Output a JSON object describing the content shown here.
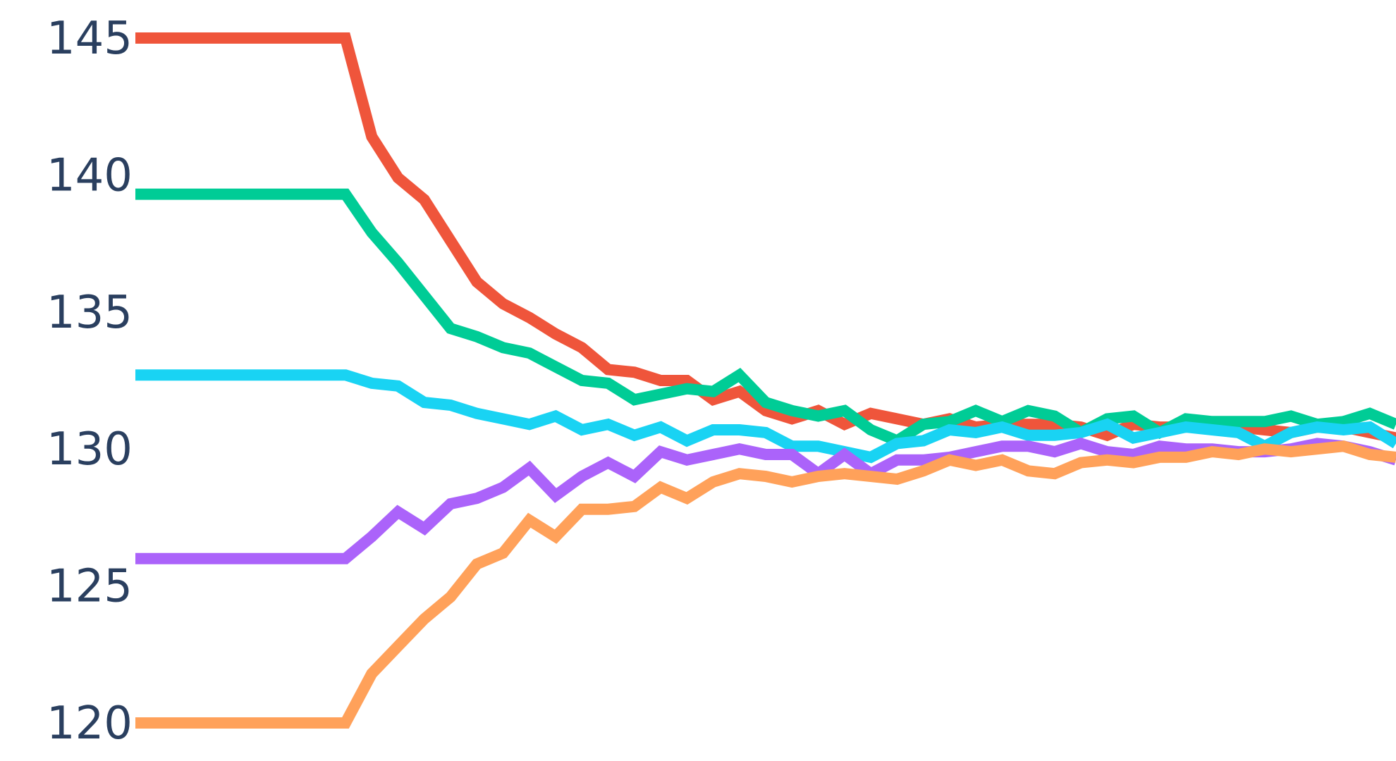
{
  "chart_data": {
    "type": "line",
    "title": "",
    "xlabel": "",
    "ylabel": "",
    "ylim": [
      120,
      145
    ],
    "xlim": [
      0,
      48
    ],
    "grid": false,
    "legend": "none",
    "y_ticks": [
      "120",
      "125",
      "130",
      "135",
      "140",
      "145"
    ],
    "x": [
      0,
      1,
      2,
      3,
      4,
      5,
      6,
      7,
      8,
      9,
      10,
      11,
      12,
      13,
      14,
      15,
      16,
      17,
      18,
      19,
      20,
      21,
      22,
      23,
      24,
      25,
      26,
      27,
      28,
      29,
      30,
      31,
      32,
      33,
      34,
      35,
      36,
      37,
      38,
      39,
      40,
      41,
      42,
      43,
      44,
      45,
      46,
      47,
      48
    ],
    "series": [
      {
        "color": "#ef553b",
        "values": [
          145.0,
          145.0,
          145.0,
          145.0,
          145.0,
          145.0,
          145.0,
          145.0,
          145.0,
          141.4,
          139.9,
          139.1,
          137.6,
          136.1,
          135.3,
          134.8,
          134.2,
          133.7,
          132.9,
          132.8,
          132.5,
          132.5,
          131.8,
          132.1,
          131.4,
          131.1,
          131.4,
          130.9,
          131.3,
          131.1,
          130.9,
          131.1,
          130.8,
          130.9,
          130.9,
          130.9,
          130.8,
          130.5,
          130.9,
          130.8,
          130.8,
          130.9,
          130.8,
          130.7,
          130.6,
          130.8,
          130.8,
          130.6,
          130.4
        ]
      },
      {
        "color": "#00cc96",
        "values": [
          139.3,
          139.3,
          139.3,
          139.3,
          139.3,
          139.3,
          139.3,
          139.3,
          139.3,
          137.9,
          136.8,
          135.6,
          134.4,
          134.1,
          133.7,
          133.5,
          133.0,
          132.5,
          132.4,
          131.8,
          132.0,
          132.2,
          132.1,
          132.7,
          131.7,
          131.4,
          131.2,
          131.4,
          130.7,
          130.3,
          130.9,
          131.0,
          131.4,
          131.0,
          131.4,
          131.2,
          130.6,
          131.1,
          131.2,
          130.6,
          131.1,
          131.0,
          131.0,
          131.0,
          131.2,
          130.9,
          131.0,
          131.3,
          130.9
        ]
      },
      {
        "color": "#19d3f3",
        "values": [
          132.7,
          132.7,
          132.7,
          132.7,
          132.7,
          132.7,
          132.7,
          132.7,
          132.7,
          132.4,
          132.3,
          131.7,
          131.6,
          131.3,
          131.1,
          130.9,
          131.2,
          130.7,
          130.9,
          130.5,
          130.8,
          130.3,
          130.7,
          130.7,
          130.6,
          130.1,
          130.1,
          129.9,
          129.7,
          130.2,
          130.3,
          130.7,
          130.6,
          130.8,
          130.5,
          130.5,
          130.6,
          130.9,
          130.4,
          130.6,
          130.8,
          130.7,
          130.6,
          130.1,
          130.6,
          130.8,
          130.7,
          130.8,
          130.2
        ]
      },
      {
        "color": "#ab63fa",
        "values": [
          126.0,
          126.0,
          126.0,
          126.0,
          126.0,
          126.0,
          126.0,
          126.0,
          126.0,
          126.8,
          127.7,
          127.1,
          128.0,
          128.2,
          128.6,
          129.3,
          128.3,
          129.0,
          129.5,
          129.0,
          129.9,
          129.6,
          129.8,
          130.0,
          129.8,
          129.8,
          129.1,
          129.8,
          129.1,
          129.6,
          129.6,
          129.7,
          129.9,
          130.1,
          130.1,
          129.9,
          130.2,
          129.9,
          129.8,
          130.1,
          130.0,
          130.0,
          129.9,
          129.9,
          130.0,
          130.2,
          130.1,
          129.9,
          129.6
        ]
      },
      {
        "color": "#ffa15a",
        "values": [
          120.0,
          120.0,
          120.0,
          120.0,
          120.0,
          120.0,
          120.0,
          120.0,
          120.0,
          121.8,
          122.8,
          123.8,
          124.6,
          125.8,
          126.2,
          127.4,
          126.8,
          127.8,
          127.8,
          127.9,
          128.6,
          128.2,
          128.8,
          129.1,
          129.0,
          128.8,
          129.0,
          129.1,
          129.0,
          128.9,
          129.2,
          129.6,
          129.4,
          129.6,
          129.2,
          129.1,
          129.5,
          129.6,
          129.5,
          129.7,
          129.7,
          129.9,
          129.8,
          130.0,
          129.9,
          130.0,
          130.1,
          129.8,
          129.7
        ]
      }
    ]
  }
}
